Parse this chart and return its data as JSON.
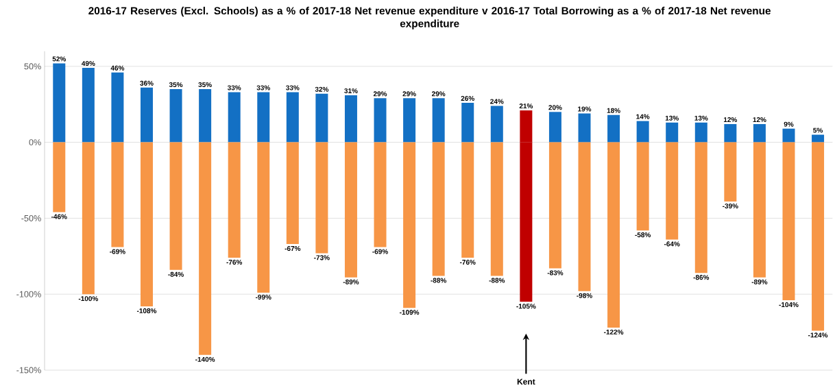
{
  "chart_data": {
    "type": "bar",
    "title": "2016-17 Reserves (Excl. Schools) as a % of 2017-18 Net revenue expenditure v 2016-17 Total Borrowing as a % of 2017-18 Net revenue expenditure",
    "categories": [
      null,
      null,
      null,
      null,
      null,
      null,
      null,
      null,
      null,
      null,
      null,
      null,
      null,
      null,
      null,
      null,
      null,
      null,
      null,
      null,
      null,
      null,
      null,
      null,
      null,
      null,
      null
    ],
    "series": [
      {
        "values": [
          52,
          49,
          46,
          36,
          35,
          35,
          33,
          33,
          33,
          32,
          31,
          29,
          29,
          29,
          26,
          24,
          21,
          20,
          19,
          18,
          14,
          13,
          13,
          12,
          12,
          9,
          5
        ],
        "value_labels": [
          "52%",
          "49%",
          "46%",
          "36%",
          "35%",
          "35%",
          "33%",
          "33%",
          "33%",
          "32%",
          "31%",
          "29%",
          "29%",
          "29%",
          "26%",
          "24%",
          "21%",
          "20%",
          "19%",
          "18%",
          "14%",
          "13%",
          "13%",
          "12%",
          "12%",
          "9%",
          "5%"
        ],
        "colors": [
          "#1370c4",
          "#1370c4",
          "#1370c4",
          "#1370c4",
          "#1370c4",
          "#1370c4",
          "#1370c4",
          "#1370c4",
          "#1370c4",
          "#1370c4",
          "#1370c4",
          "#1370c4",
          "#1370c4",
          "#1370c4",
          "#1370c4",
          "#1370c4",
          "#c00000",
          "#1370c4",
          "#1370c4",
          "#1370c4",
          "#1370c4",
          "#1370c4",
          "#1370c4",
          "#1370c4",
          "#1370c4",
          "#1370c4",
          "#1370c4"
        ]
      },
      {
        "values": [
          -46,
          -100,
          -69,
          -108,
          -84,
          -140,
          -76,
          -99,
          -67,
          -73,
          -89,
          -69,
          -109,
          -88,
          -76,
          -88,
          -105,
          -83,
          -98,
          -122,
          -58,
          -64,
          -86,
          -39,
          -89,
          -104,
          -124
        ],
        "value_labels": [
          "-46%",
          "-100%",
          "-69%",
          "-108%",
          "-84%",
          "-140%",
          "-76%",
          "-99%",
          "-67%",
          "-73%",
          "-89%",
          "-69%",
          "-109%",
          "-88%",
          "-76%",
          "-88%",
          "-105%",
          "-83%",
          "-98%",
          "-122%",
          "-58%",
          "-64%",
          "-86%",
          "-39%",
          "-89%",
          "-104%",
          "-124%"
        ],
        "colors": [
          "#f79646",
          "#f79646",
          "#f79646",
          "#f79646",
          "#f79646",
          "#f79646",
          "#f79646",
          "#f79646",
          "#f79646",
          "#f79646",
          "#f79646",
          "#f79646",
          "#f79646",
          "#f79646",
          "#f79646",
          "#f79646",
          "#c00000",
          "#f79646",
          "#f79646",
          "#f79646",
          "#f79646",
          "#f79646",
          "#f79646",
          "#f79646",
          "#f79646",
          "#f79646",
          "#f79646"
        ]
      }
    ],
    "ylim": [
      -150,
      60
    ],
    "yticks": [
      {
        "value": -150,
        "label": "-150%"
      },
      {
        "value": -100,
        "label": "-100%"
      },
      {
        "value": -50,
        "label": "-50%"
      },
      {
        "value": 0,
        "label": "0%"
      },
      {
        "value": 50,
        "label": "50%"
      }
    ],
    "grid": "y",
    "stacked": true,
    "annotations": [
      "Kent"
    ]
  }
}
